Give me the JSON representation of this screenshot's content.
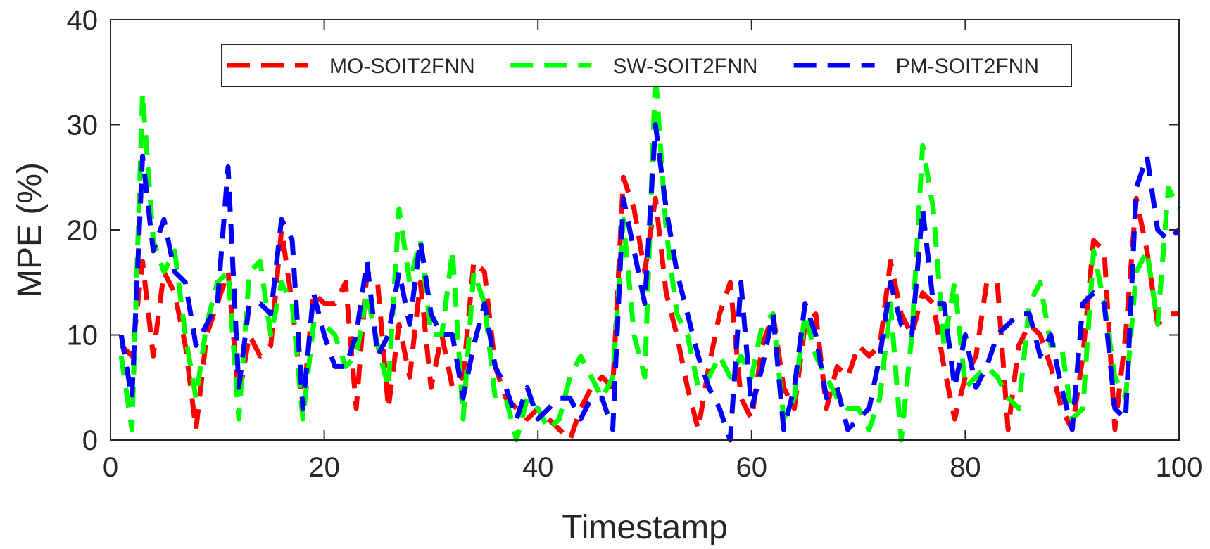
{
  "chart_data": {
    "type": "line",
    "title": "",
    "xlabel": "Timestamp",
    "ylabel": "MPE (%)",
    "xlim": [
      0,
      100
    ],
    "ylim": [
      0,
      40
    ],
    "xticks": [
      0,
      20,
      40,
      60,
      80,
      100
    ],
    "yticks": [
      0,
      10,
      20,
      30,
      40
    ],
    "grid": false,
    "legend_position": "top",
    "x": [
      1,
      2,
      3,
      4,
      5,
      6,
      7,
      8,
      9,
      10,
      11,
      12,
      13,
      14,
      15,
      16,
      17,
      18,
      19,
      20,
      21,
      22,
      23,
      24,
      25,
      26,
      27,
      28,
      29,
      30,
      31,
      32,
      33,
      34,
      35,
      36,
      37,
      38,
      39,
      40,
      41,
      42,
      43,
      44,
      45,
      46,
      47,
      48,
      49,
      50,
      51,
      52,
      53,
      54,
      55,
      56,
      57,
      58,
      59,
      60,
      61,
      62,
      63,
      64,
      65,
      66,
      67,
      68,
      69,
      70,
      71,
      72,
      73,
      74,
      75,
      76,
      77,
      78,
      79,
      80,
      81,
      82,
      83,
      84,
      85,
      86,
      87,
      88,
      89,
      90,
      91,
      92,
      93,
      94,
      95,
      96,
      97,
      98,
      99,
      100
    ],
    "series": [
      {
        "name": "MO-SOIT2FNN",
        "color": "#ff0000",
        "values": [
          9,
          8,
          17,
          8,
          16,
          14,
          9,
          1,
          10,
          13,
          16,
          4,
          10,
          8,
          9,
          20,
          13,
          3,
          14,
          13,
          13,
          15,
          3,
          16,
          15,
          3,
          11,
          6,
          15,
          5,
          10,
          5,
          6,
          17,
          16,
          7,
          4,
          3,
          2,
          3,
          2,
          1,
          0,
          3,
          5,
          6,
          5,
          25,
          22,
          16,
          23,
          14,
          10,
          5,
          1,
          7,
          12,
          15,
          4,
          2,
          9,
          12,
          5,
          3,
          11,
          12,
          3,
          7,
          6,
          9,
          8,
          9,
          17,
          12,
          10,
          14,
          13,
          7,
          2,
          6,
          8,
          15,
          15,
          1,
          9,
          11,
          10,
          7,
          3,
          1,
          8,
          19,
          18,
          1,
          10,
          23,
          18,
          11,
          12,
          12
        ]
      },
      {
        "name": "SW-SOIT2FNN",
        "color": "#00ff00",
        "values": [
          8,
          1,
          33,
          19,
          16,
          18,
          10,
          4,
          11,
          15,
          16,
          2,
          16,
          17,
          10,
          15,
          13,
          2,
          11,
          11,
          10,
          7,
          8,
          14,
          9,
          5,
          22,
          15,
          19,
          10,
          10,
          18,
          2,
          16,
          13,
          4,
          4,
          0,
          4,
          3,
          1,
          2,
          6,
          8,
          6,
          4,
          6,
          21,
          10,
          6,
          35,
          20,
          12,
          10,
          5,
          6,
          8,
          6,
          8,
          6,
          11,
          12,
          2,
          4,
          12,
          8,
          6,
          4,
          3,
          3,
          1,
          4,
          13,
          0,
          10,
          28,
          22,
          9,
          15,
          5,
          6,
          7,
          6,
          4,
          3,
          13,
          15,
          9,
          9,
          2,
          3,
          18,
          13,
          6,
          4,
          16,
          18,
          11,
          24,
          22
        ]
      },
      {
        "name": "PM-SOIT2FNN",
        "color": "#0000ff",
        "values": [
          10,
          4,
          27,
          18,
          21,
          16,
          15,
          9,
          11,
          13,
          26,
          5,
          13,
          13,
          12,
          21,
          19,
          3,
          14,
          10,
          7,
          7,
          10,
          17,
          8,
          10,
          16,
          11,
          19,
          12,
          10,
          10,
          4,
          9,
          13,
          7,
          5,
          2,
          5,
          2,
          3,
          4,
          4,
          2,
          4,
          4,
          1,
          23,
          18,
          13,
          30,
          22,
          16,
          12,
          8,
          5,
          3,
          0,
          15,
          3,
          7,
          12,
          1,
          5,
          13,
          10,
          4,
          5,
          1,
          2,
          3,
          8,
          15,
          11,
          10,
          22,
          13,
          13,
          5,
          10,
          5,
          7,
          10,
          11,
          12,
          12,
          8,
          10,
          5,
          1,
          13,
          14,
          13,
          3,
          2,
          24,
          27,
          20,
          19,
          20
        ]
      }
    ]
  }
}
